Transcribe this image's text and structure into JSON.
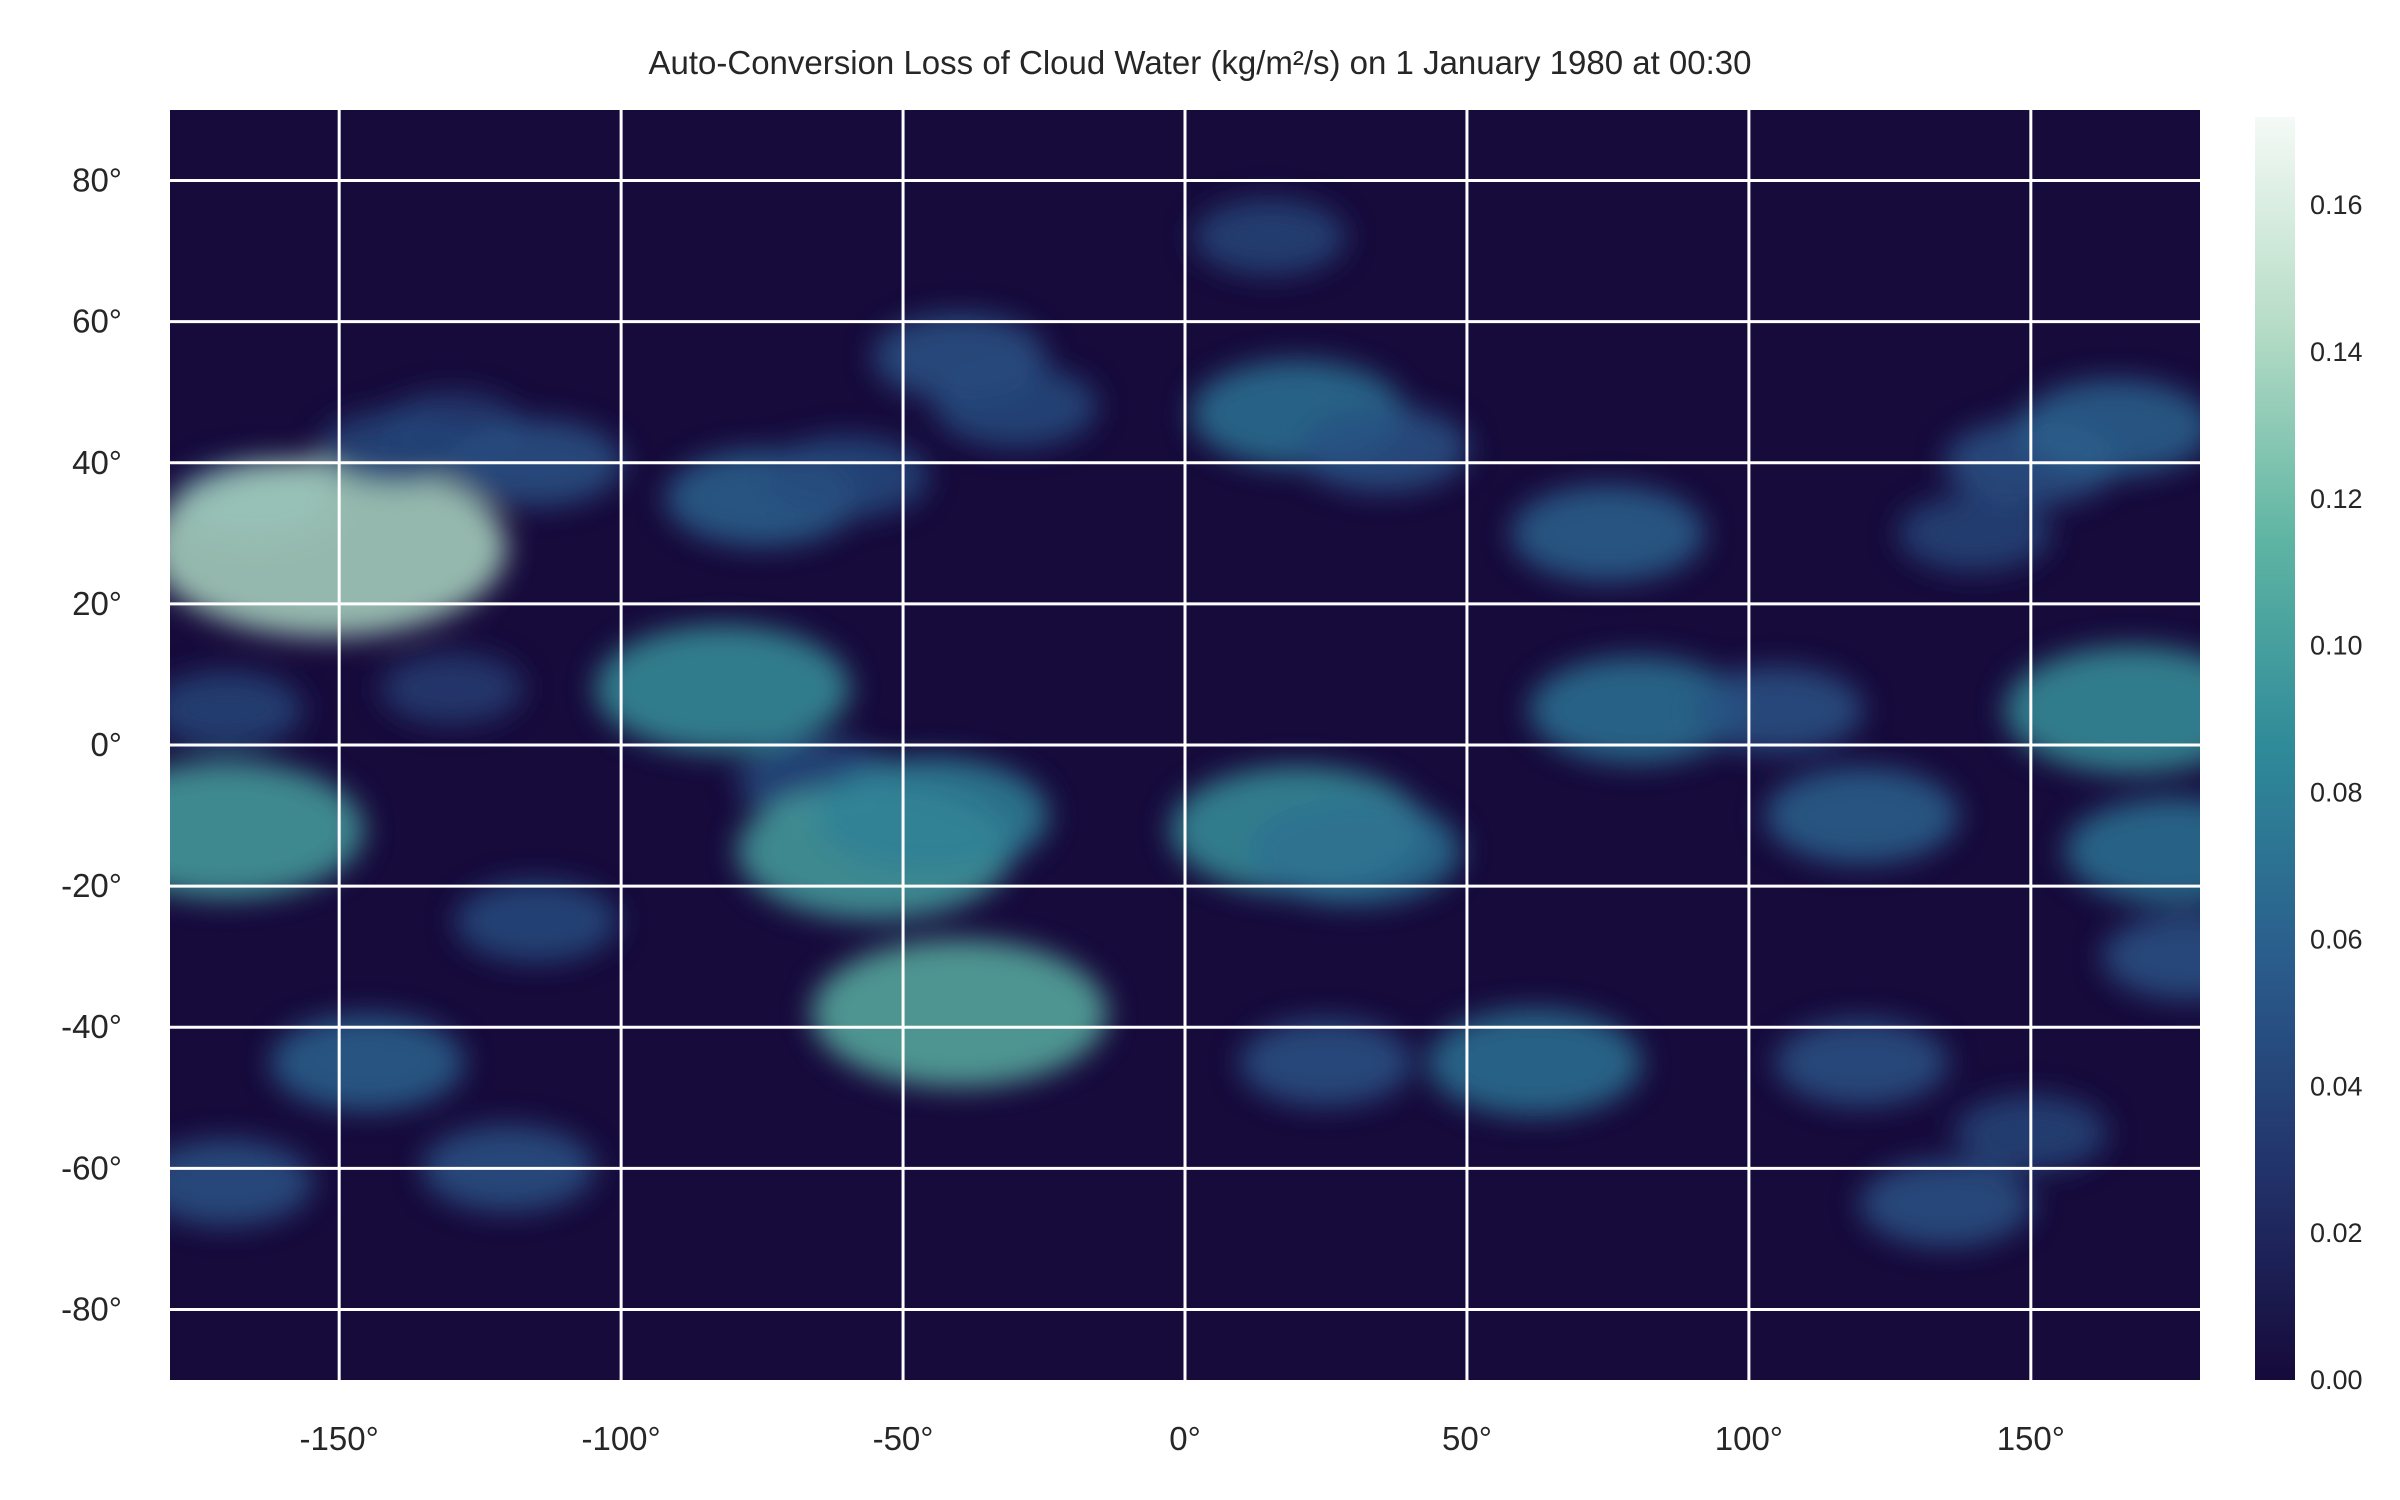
{
  "chart_data": {
    "type": "heatmap",
    "title": "Auto-Conversion Loss of Cloud Water (kg/m²/s) on 1 January 1980 at 00:30",
    "xlabel": "",
    "ylabel": "",
    "xlim": [
      -180,
      180
    ],
    "ylim": [
      -90,
      90
    ],
    "x_ticks": [
      -150,
      -100,
      -50,
      0,
      50,
      100,
      150
    ],
    "y_ticks": [
      80,
      60,
      40,
      20,
      0,
      -20,
      -40,
      -60,
      -80
    ],
    "x_tick_labels": [
      "-150°",
      "-100°",
      "-50°",
      "0°",
      "50°",
      "100°",
      "150°"
    ],
    "y_tick_labels": [
      "80°",
      "60°",
      "40°",
      "20°",
      "0°",
      "-20°",
      "-40°",
      "-60°",
      "-80°"
    ],
    "grid": true,
    "colormap": [
      "#160a3a",
      "#22336b",
      "#2a5d8c",
      "#2f8a99",
      "#5fb5a3",
      "#b6dcc6",
      "#f4faf6"
    ],
    "colorbar": {
      "vmin": 0.0,
      "vmax": 0.172,
      "ticks": [
        0.0,
        0.02,
        0.04,
        0.06,
        0.08,
        0.1,
        0.12,
        0.14,
        0.16
      ],
      "tick_labels": [
        "0.00",
        "0.02",
        "0.04",
        "0.06",
        "0.08",
        "0.10",
        "0.12",
        "0.14",
        "0.16"
      ]
    },
    "features": [
      {
        "lon": -130,
        "lat": 45,
        "value": 0.035
      },
      {
        "lon": -165,
        "lat": 35,
        "value": 0.045
      },
      {
        "lon": -152,
        "lat": 28,
        "value": 0.14
      },
      {
        "lon": -140,
        "lat": 42,
        "value": 0.04
      },
      {
        "lon": -115,
        "lat": 40,
        "value": 0.05
      },
      {
        "lon": -75,
        "lat": 35,
        "value": 0.06
      },
      {
        "lon": -60,
        "lat": 38,
        "value": 0.045
      },
      {
        "lon": -40,
        "lat": 55,
        "value": 0.05
      },
      {
        "lon": -30,
        "lat": 48,
        "value": 0.045
      },
      {
        "lon": 20,
        "lat": 47,
        "value": 0.07
      },
      {
        "lon": 35,
        "lat": 42,
        "value": 0.05
      },
      {
        "lon": 15,
        "lat": 72,
        "value": 0.04
      },
      {
        "lon": 75,
        "lat": 30,
        "value": 0.06
      },
      {
        "lon": 150,
        "lat": 40,
        "value": 0.05
      },
      {
        "lon": 165,
        "lat": 45,
        "value": 0.06
      },
      {
        "lon": 140,
        "lat": 30,
        "value": 0.04
      },
      {
        "lon": -170,
        "lat": 5,
        "value": 0.04
      },
      {
        "lon": -130,
        "lat": 8,
        "value": 0.035
      },
      {
        "lon": -82,
        "lat": 8,
        "value": 0.09
      },
      {
        "lon": -65,
        "lat": -5,
        "value": 0.045
      },
      {
        "lon": -55,
        "lat": -15,
        "value": 0.1
      },
      {
        "lon": -45,
        "lat": -10,
        "value": 0.08
      },
      {
        "lon": 20,
        "lat": -12,
        "value": 0.09
      },
      {
        "lon": 30,
        "lat": -15,
        "value": 0.07
      },
      {
        "lon": 80,
        "lat": 5,
        "value": 0.07
      },
      {
        "lon": 105,
        "lat": 5,
        "value": 0.05
      },
      {
        "lon": 120,
        "lat": -10,
        "value": 0.06
      },
      {
        "lon": 168,
        "lat": 5,
        "value": 0.09
      },
      {
        "lon": 175,
        "lat": -15,
        "value": 0.07
      },
      {
        "lon": -170,
        "lat": -12,
        "value": 0.1
      },
      {
        "lon": -115,
        "lat": -25,
        "value": 0.045
      },
      {
        "lon": -40,
        "lat": -38,
        "value": 0.11
      },
      {
        "lon": -145,
        "lat": -45,
        "value": 0.06
      },
      {
        "lon": -120,
        "lat": -60,
        "value": 0.05
      },
      {
        "lon": -170,
        "lat": -62,
        "value": 0.05
      },
      {
        "lon": 25,
        "lat": -45,
        "value": 0.05
      },
      {
        "lon": 62,
        "lat": -45,
        "value": 0.07
      },
      {
        "lon": 120,
        "lat": -45,
        "value": 0.05
      },
      {
        "lon": 150,
        "lat": -55,
        "value": 0.04
      },
      {
        "lon": 135,
        "lat": -65,
        "value": 0.05
      },
      {
        "lon": 178,
        "lat": -30,
        "value": 0.05
      }
    ]
  }
}
